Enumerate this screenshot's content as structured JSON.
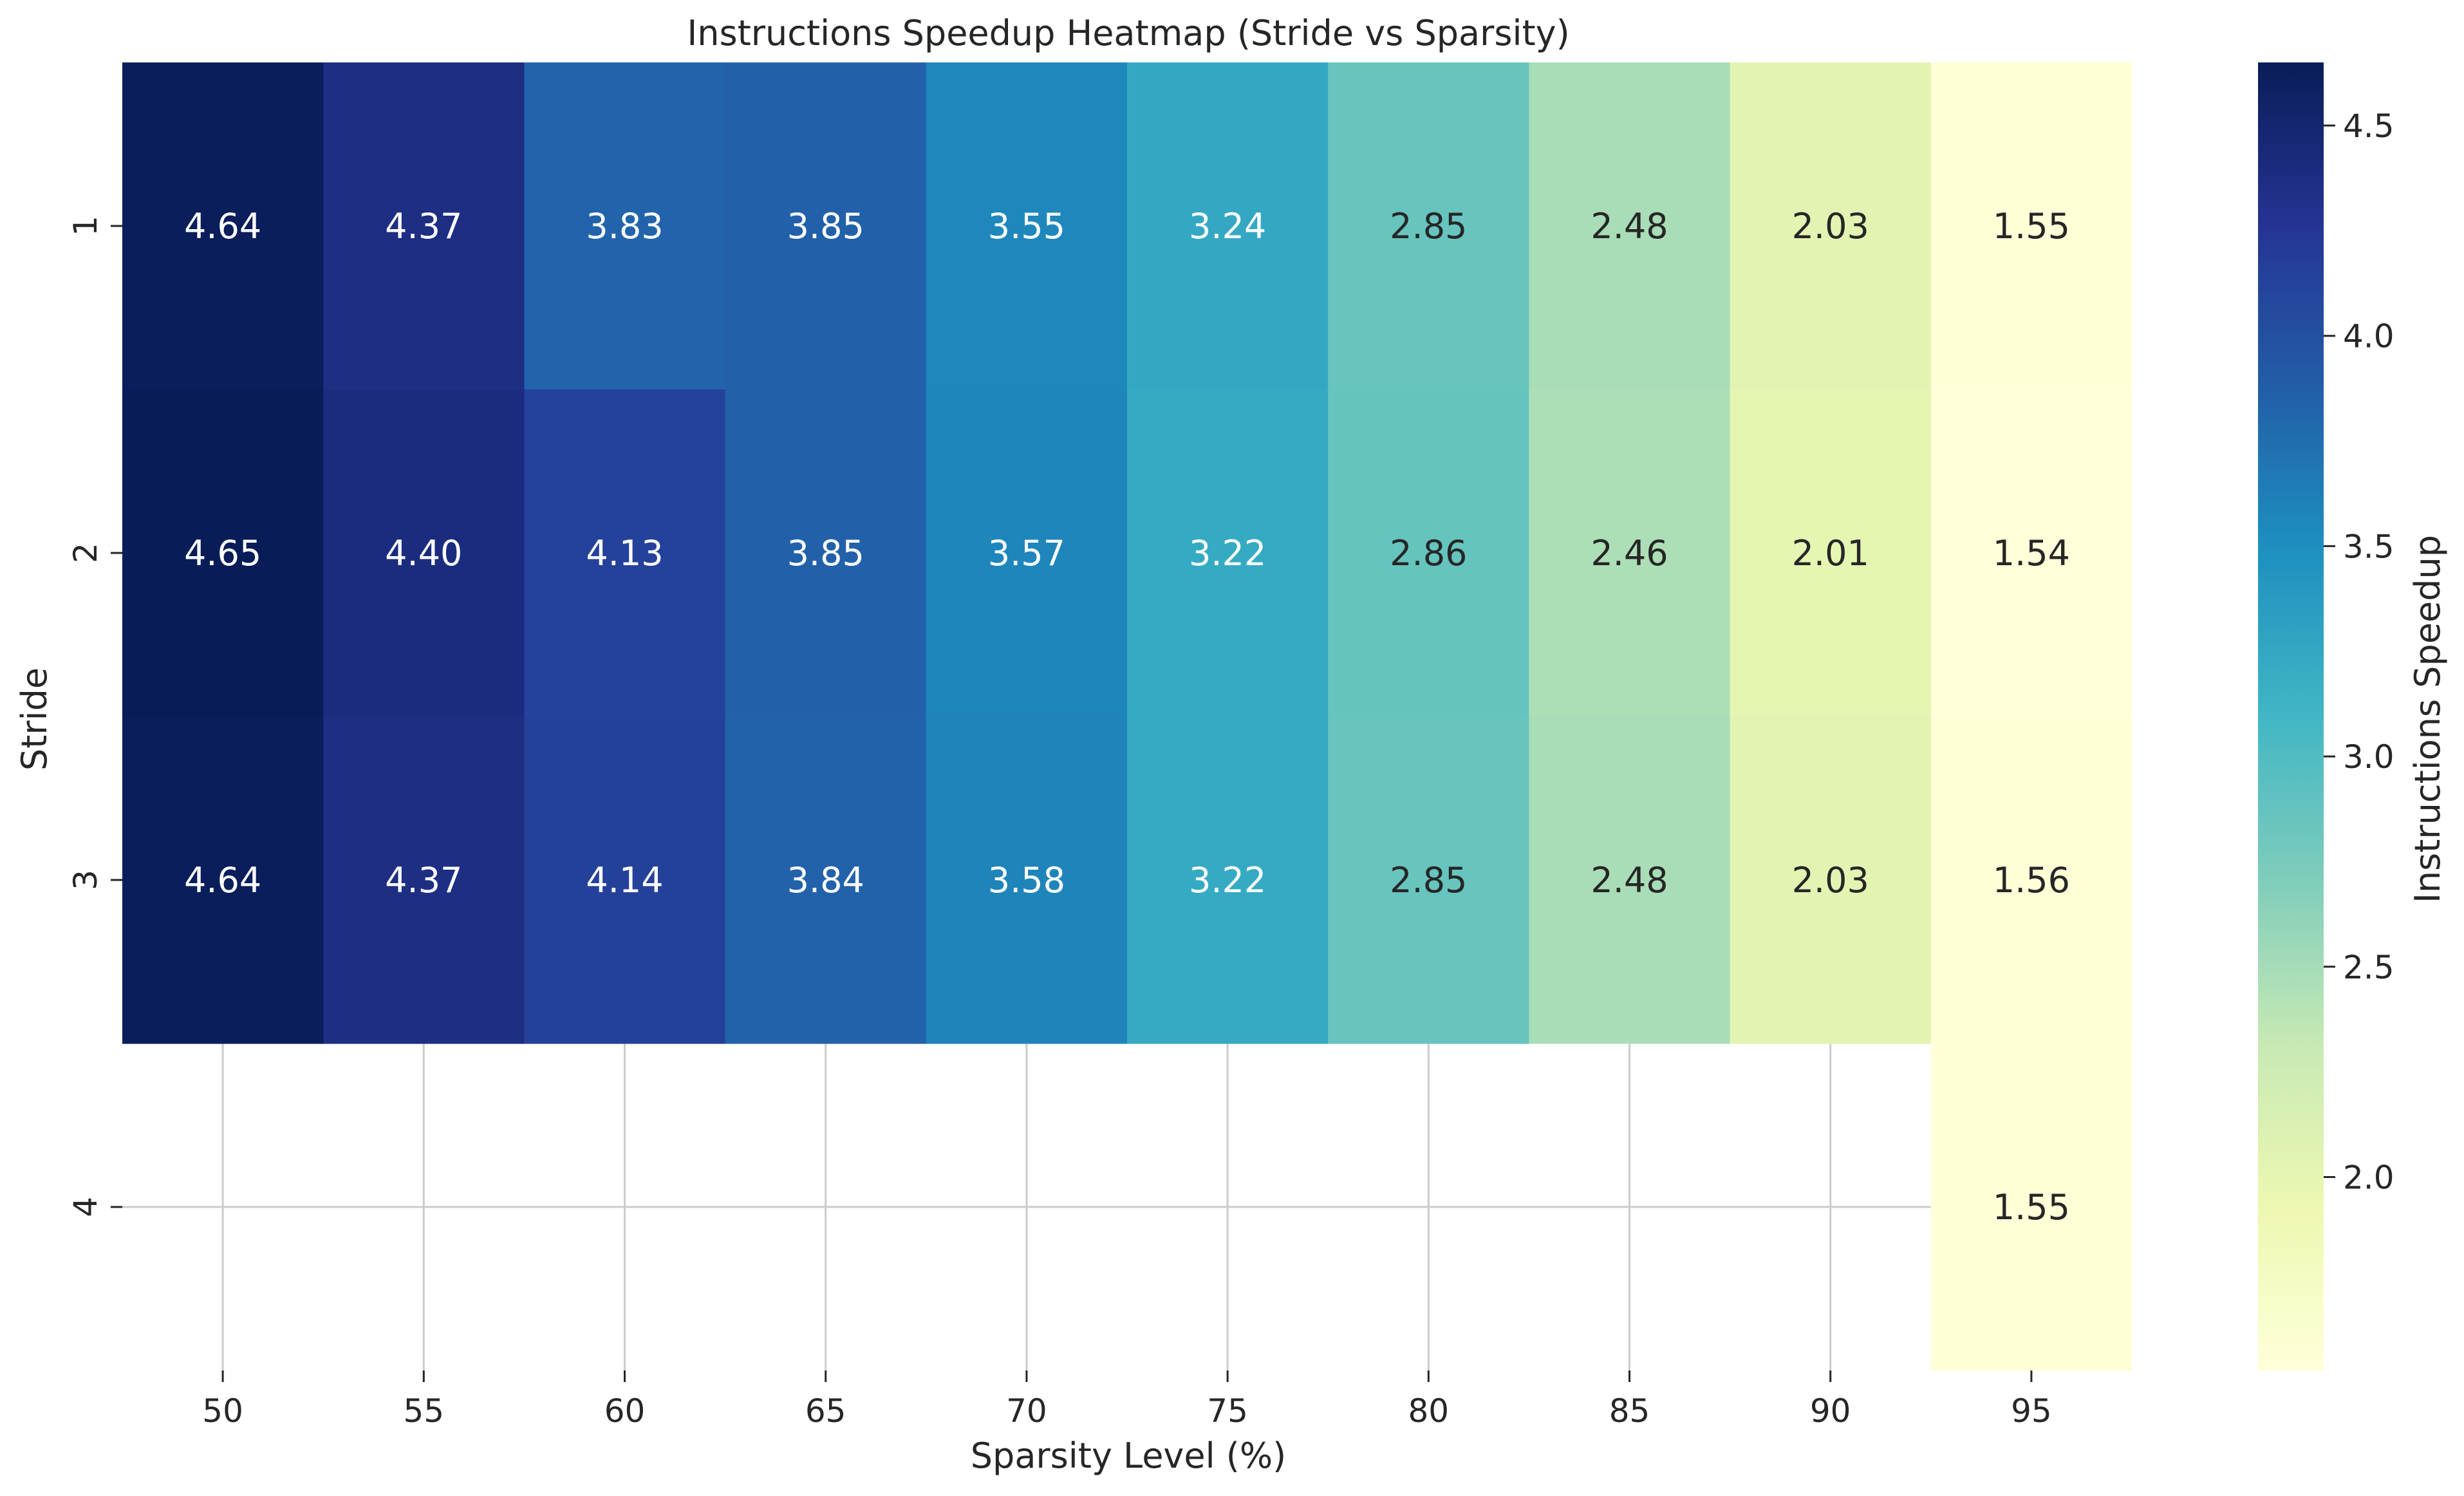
{
  "chart_data": {
    "type": "heatmap",
    "title": "Instructions Speedup Heatmap (Stride vs Sparsity)",
    "xlabel": "Sparsity Level (%)",
    "ylabel": "Stride",
    "x_categories": [
      "50",
      "55",
      "60",
      "65",
      "70",
      "75",
      "80",
      "85",
      "90",
      "95"
    ],
    "y_categories": [
      "1",
      "2",
      "3",
      "4"
    ],
    "values": [
      [
        4.64,
        4.37,
        3.83,
        3.85,
        3.55,
        3.24,
        2.85,
        2.48,
        2.03,
        1.55
      ],
      [
        4.65,
        4.4,
        4.13,
        3.85,
        3.57,
        3.22,
        2.86,
        2.46,
        2.01,
        1.54
      ],
      [
        4.64,
        4.37,
        4.14,
        3.84,
        3.58,
        3.22,
        2.85,
        2.48,
        2.03,
        1.56
      ],
      [
        null,
        null,
        null,
        null,
        null,
        null,
        null,
        null,
        null,
        1.55
      ]
    ],
    "value_format": "0.00",
    "colormap": "YlGnBu",
    "colorbar": {
      "label": "Instructions Speedup",
      "range": [
        1.54,
        4.65
      ],
      "ticks": [
        2.0,
        2.5,
        3.0,
        3.5,
        4.0,
        4.5
      ],
      "tick_labels": [
        "2.0",
        "2.5",
        "3.0",
        "3.5",
        "4.0",
        "4.5"
      ]
    },
    "grid": true,
    "missing_cells": "blank"
  }
}
